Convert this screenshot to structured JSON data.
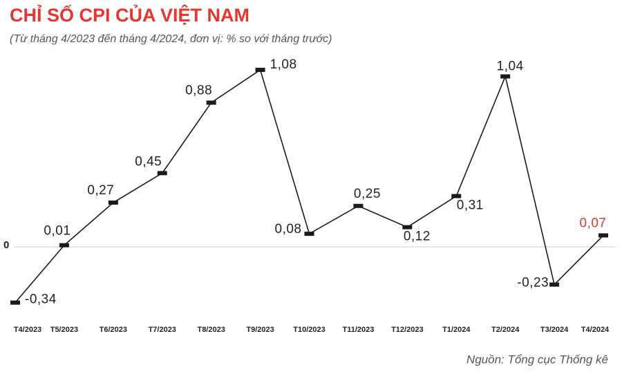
{
  "chart_data": {
    "type": "line",
    "title": "CHỈ SỐ CPI CỦA VIỆT NAM",
    "subtitle": "(Từ tháng 4/2023 đến tháng 4/2024, đơn vị: % so với tháng trước)",
    "source": "Nguồn: Tổng cục Thống kê",
    "categories": [
      "T4/2023",
      "T5/2023",
      "T6/2023",
      "T7/2023",
      "T8/2023",
      "T9/2023",
      "T10/2023",
      "T11/2023",
      "T12/2023",
      "T1/2024",
      "T2/2024",
      "T3/2024",
      "T4/2024"
    ],
    "values": [
      -0.34,
      0.01,
      0.27,
      0.45,
      0.88,
      1.08,
      0.08,
      0.25,
      0.12,
      0.31,
      1.04,
      -0.23,
      0.07
    ],
    "value_labels": [
      "-0,34",
      "0,01",
      "0,27",
      "0,45",
      "0,88",
      "1,08",
      "0,08",
      "0,25",
      "0,12",
      "0,31",
      "1,04",
      "-0,23",
      "0,07"
    ],
    "value_label_colors": [
      "#222222",
      "#222222",
      "#222222",
      "#222222",
      "#222222",
      "#222222",
      "#222222",
      "#222222",
      "#222222",
      "#222222",
      "#222222",
      "#222222",
      "#e8352e"
    ],
    "color": "#1a1a1a",
    "ylim": [
      -0.45,
      1.2
    ],
    "yticks": [
      0
    ],
    "grid": true
  }
}
